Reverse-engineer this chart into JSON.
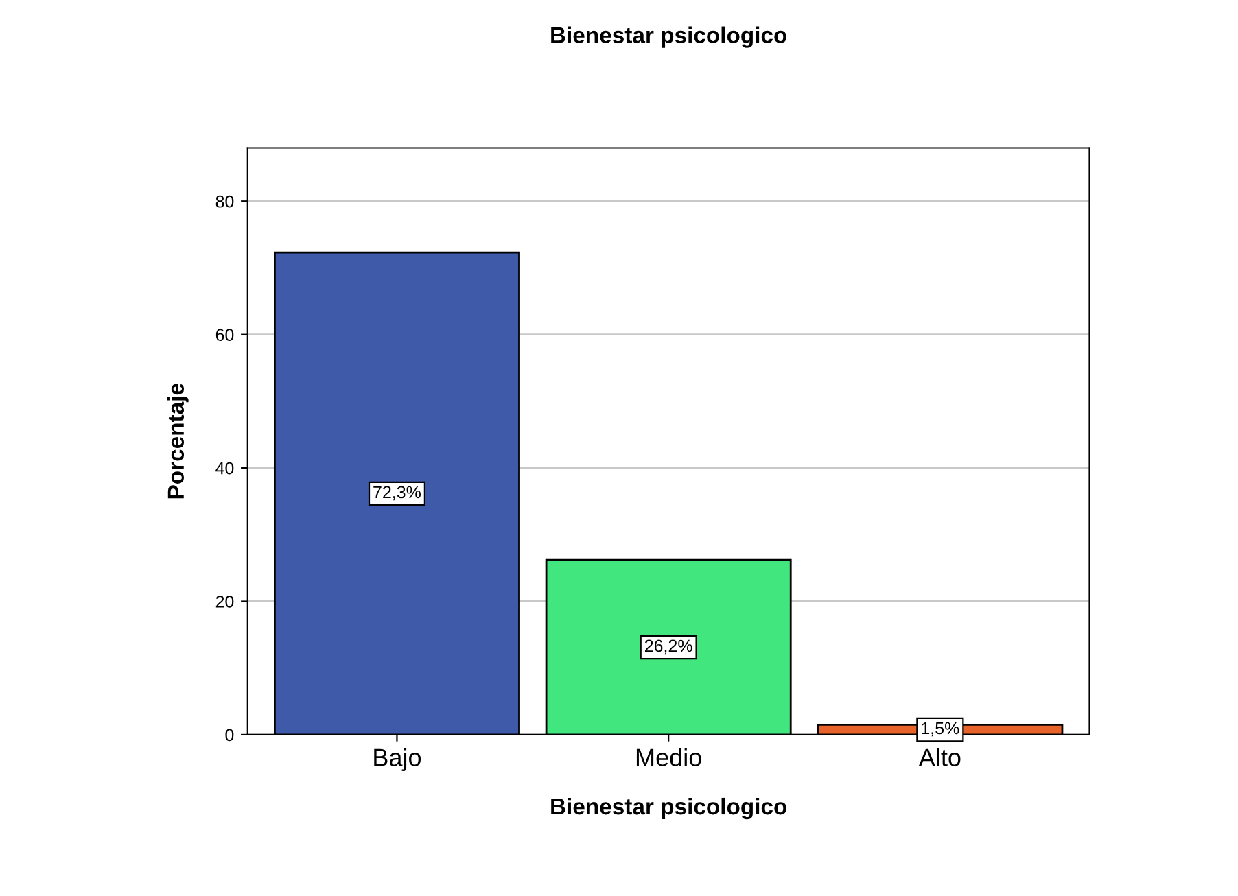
{
  "chart_data": {
    "type": "bar",
    "title": "Bienestar psicologico",
    "xlabel": "Bienestar psicologico",
    "ylabel": "Porcentaje",
    "categories": [
      "Bajo",
      "Medio",
      "Alto"
    ],
    "values": [
      72.3,
      26.2,
      1.5
    ],
    "colors": [
      "#3f5aa8",
      "#42e67e",
      "#e8632a"
    ],
    "value_labels": [
      "72,3%",
      "26,2%",
      "1,5%"
    ],
    "ylim": [
      0,
      88
    ],
    "yticks": [
      0,
      20,
      40,
      60,
      80
    ],
    "grid": "y"
  }
}
